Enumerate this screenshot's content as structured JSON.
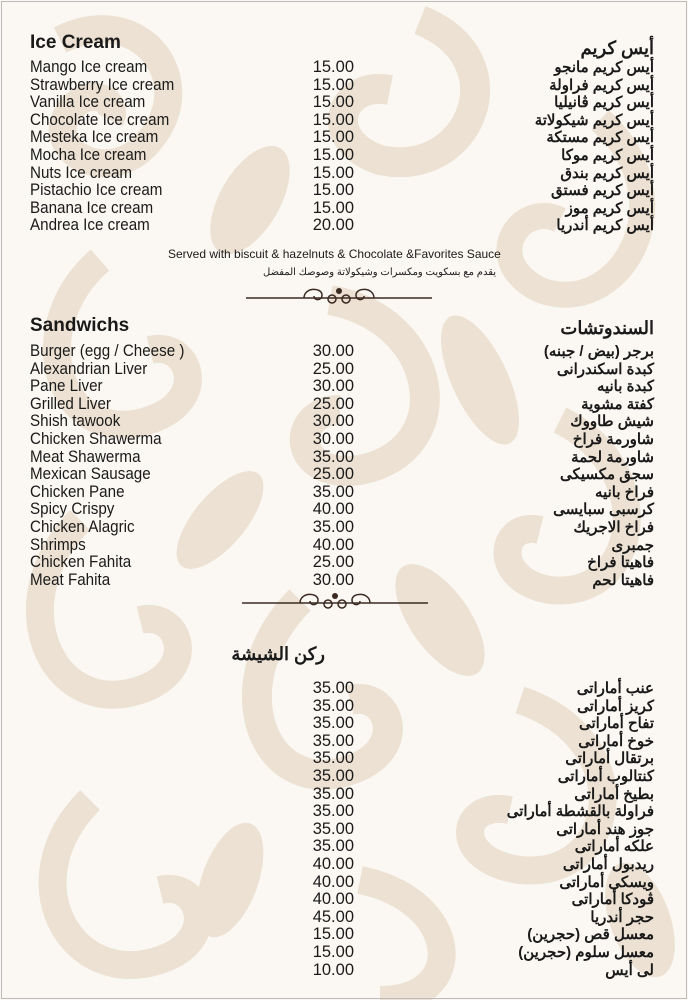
{
  "colors": {
    "background": "#fbf8f3",
    "pattern": "#e9dccb",
    "text": "#1a1a1a"
  },
  "ice_cream": {
    "title_en": "Ice Cream",
    "title_ar": "أيس كريم",
    "items": [
      {
        "en": "Mango Ice cream",
        "price": "15.00",
        "ar": "أيس كريم مانجو"
      },
      {
        "en": "Strawberry Ice cream",
        "price": "15.00",
        "ar": "أيس كريم فراولة"
      },
      {
        "en": "Vanilla Ice cream",
        "price": "15.00",
        "ar": "أيس كريم ڤانيليا"
      },
      {
        "en": "Chocolate Ice cream",
        "price": "15.00",
        "ar": "أيس كريم شيكولاتة"
      },
      {
        "en": "Mesteka Ice cream",
        "price": "15.00",
        "ar": "أيس كريم مستكة"
      },
      {
        "en": "Mocha Ice cream",
        "price": "15.00",
        "ar": "أيس كريم موكا"
      },
      {
        "en": "Nuts Ice cream",
        "price": "15.00",
        "ar": "أيس كريم بندق"
      },
      {
        "en": "Pistachio Ice cream",
        "price": "15.00",
        "ar": "أيس كريم فستق"
      },
      {
        "en": "Banana Ice cream",
        "price": "15.00",
        "ar": "أيس كريم موز"
      },
      {
        "en": "Andrea Ice cream",
        "price": "20.00",
        "ar": "أيس كريم أندريا"
      }
    ],
    "note_en": "Served with biscuit & hazelnuts & Chocolate &Favorites Sauce",
    "note_ar": "يقدم مع بسكويت ومكسرات وشيكولاتة وصوصك المفضل"
  },
  "sandwiches": {
    "title_en": "Sandwichs",
    "title_ar": "السندوتشات",
    "items": [
      {
        "en": "Burger (egg / Cheese )",
        "price": "30.00",
        "ar": "برجر (بيض / جبنه)"
      },
      {
        "en": "Alexandrian Liver",
        "price": "25.00",
        "ar": "كبدة اسكندرانى"
      },
      {
        "en": "Pane Liver",
        "price": "30.00",
        "ar": "كبدة بانيه"
      },
      {
        "en": "Grilled Liver",
        "price": "25.00",
        "ar": "كفتة مشوية"
      },
      {
        "en": "Shish tawook",
        "price": "30.00",
        "ar": "شيش طاووك"
      },
      {
        "en": "Chicken Shawerma",
        "price": "30.00",
        "ar": "شاورمة فراخ"
      },
      {
        "en": "Meat Shawerma",
        "price": "35.00",
        "ar": "شاورمة لحمة"
      },
      {
        "en": "Mexican Sausage",
        "price": "25.00",
        "ar": "سجق مكسيكى"
      },
      {
        "en": "Chicken Pane",
        "price": "35.00",
        "ar": "فراخ بانيه"
      },
      {
        "en": "Spicy Crispy",
        "price": "40.00",
        "ar": "كرسبى سبايسى"
      },
      {
        "en": "Chicken Alagric",
        "price": "35.00",
        "ar": "فراخ الاجريك"
      },
      {
        "en": "Shrimps",
        "price": "40.00",
        "ar": "جمبرى"
      },
      {
        "en": "Chicken Fahita",
        "price": "25.00",
        "ar": "فاهيتا فراخ"
      },
      {
        "en": "Meat Fahita",
        "price": "30.00",
        "ar": "فاهيتا لحم"
      }
    ]
  },
  "shisha": {
    "title_ar": "ركن الشيشة",
    "items": [
      {
        "en": "",
        "price": "35.00",
        "ar": "عنب أماراتى"
      },
      {
        "en": "",
        "price": "35.00",
        "ar": "كريز أماراتى"
      },
      {
        "en": "",
        "price": "35.00",
        "ar": "تفاح أماراتى"
      },
      {
        "en": "",
        "price": "35.00",
        "ar": "خوخ أماراتى"
      },
      {
        "en": "",
        "price": "35.00",
        "ar": "برتقال أماراتى"
      },
      {
        "en": "",
        "price": "35.00",
        "ar": "كنتالوب أماراتى"
      },
      {
        "en": "",
        "price": "35.00",
        "ar": "بطيخ أماراتى"
      },
      {
        "en": "",
        "price": "35.00",
        "ar": "فراولة بالقشطة أماراتى"
      },
      {
        "en": "",
        "price": "35.00",
        "ar": "جوز هند أماراتى"
      },
      {
        "en": "",
        "price": "35.00",
        "ar": "علكه أماراتى"
      },
      {
        "en": "",
        "price": "40.00",
        "ar": "ريدبول أماراتى"
      },
      {
        "en": "",
        "price": "40.00",
        "ar": "ويسكى أماراتى"
      },
      {
        "en": "",
        "price": "40.00",
        "ar": "ڤودكا أماراتى"
      },
      {
        "en": "",
        "price": "45.00",
        "ar": "حجر أندريا"
      },
      {
        "en": "",
        "price": "15.00",
        "ar": "معسل قص (حجرين)"
      },
      {
        "en": "",
        "price": "15.00",
        "ar": "معسل سلوم (حجرين)"
      },
      {
        "en": "",
        "price": "10.00",
        "ar": "لى أيس"
      }
    ]
  }
}
